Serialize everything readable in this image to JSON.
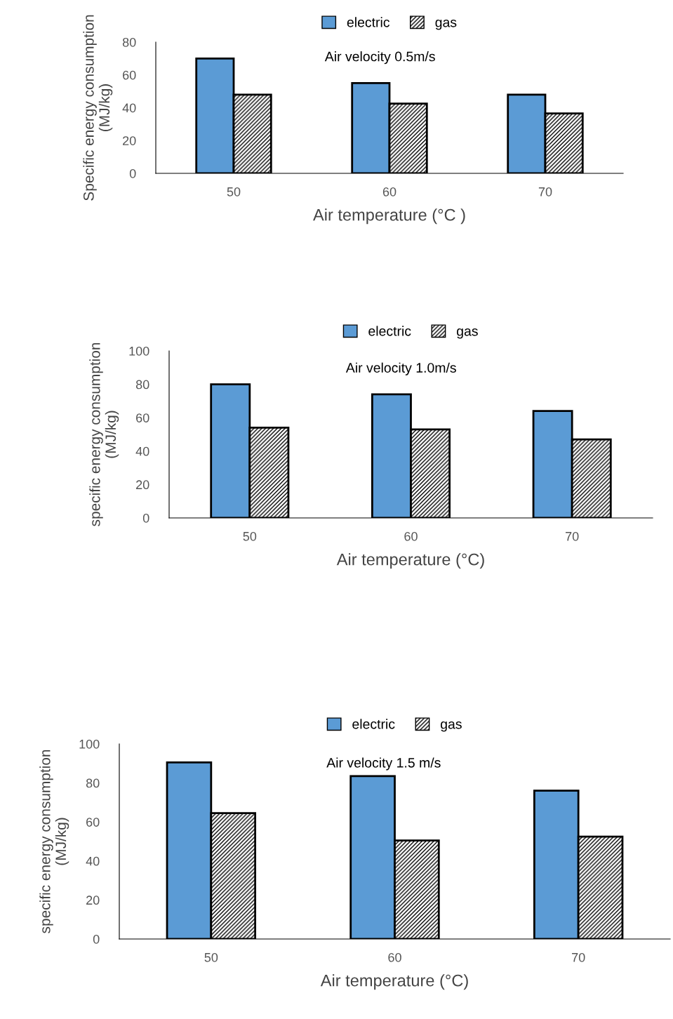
{
  "chart_data": [
    {
      "type": "bar",
      "categories": [
        "50",
        "60",
        "70"
      ],
      "xlabel": "Air temperature (°C )",
      "ylabel": "Specific energy consumption\n(MJ/kg)",
      "annotations": [
        "Air velocity 0.5m/s"
      ],
      "ylim": [
        0,
        80
      ],
      "yticks": [
        0,
        20,
        40,
        60,
        80
      ],
      "grid": false,
      "legend": "top",
      "series": [
        {
          "name": "electric",
          "color": "#5b9bd5",
          "values": [
            70,
            55,
            48
          ]
        },
        {
          "name": "gas",
          "color": "#000000",
          "values": [
            48,
            42.5,
            36.5
          ]
        }
      ]
    },
    {
      "type": "bar",
      "categories": [
        "50",
        "60",
        "70"
      ],
      "xlabel": "Air temperature (°C)",
      "ylabel": "specific energy consumption\n(MJ/kg)",
      "annotations": [
        "Air velocity 1.0m/s"
      ],
      "ylim": [
        0,
        100
      ],
      "yticks": [
        0,
        20,
        40,
        60,
        80,
        100
      ],
      "grid": false,
      "legend": "top",
      "series": [
        {
          "name": "electric",
          "color": "#5b9bd5",
          "values": [
            80,
            74,
            64
          ]
        },
        {
          "name": "gas",
          "color": "#000000",
          "values": [
            54,
            53,
            47
          ]
        }
      ]
    },
    {
      "type": "bar",
      "categories": [
        "50",
        "60",
        "70"
      ],
      "xlabel": "Air temperature (°C)",
      "ylabel": "specific energy consumption\n(MJ/kg)",
      "annotations": [
        "Air velocity 1.5 m/s"
      ],
      "ylim": [
        0,
        100
      ],
      "yticks": [
        0,
        20,
        40,
        60,
        80,
        100
      ],
      "grid": false,
      "legend": "top",
      "series": [
        {
          "name": "electric",
          "color": "#5b9bd5",
          "values": [
            90.5,
            83.5,
            76
          ]
        },
        {
          "name": "gas",
          "color": "#000000",
          "values": [
            64.5,
            50.5,
            52.5
          ]
        }
      ]
    }
  ]
}
